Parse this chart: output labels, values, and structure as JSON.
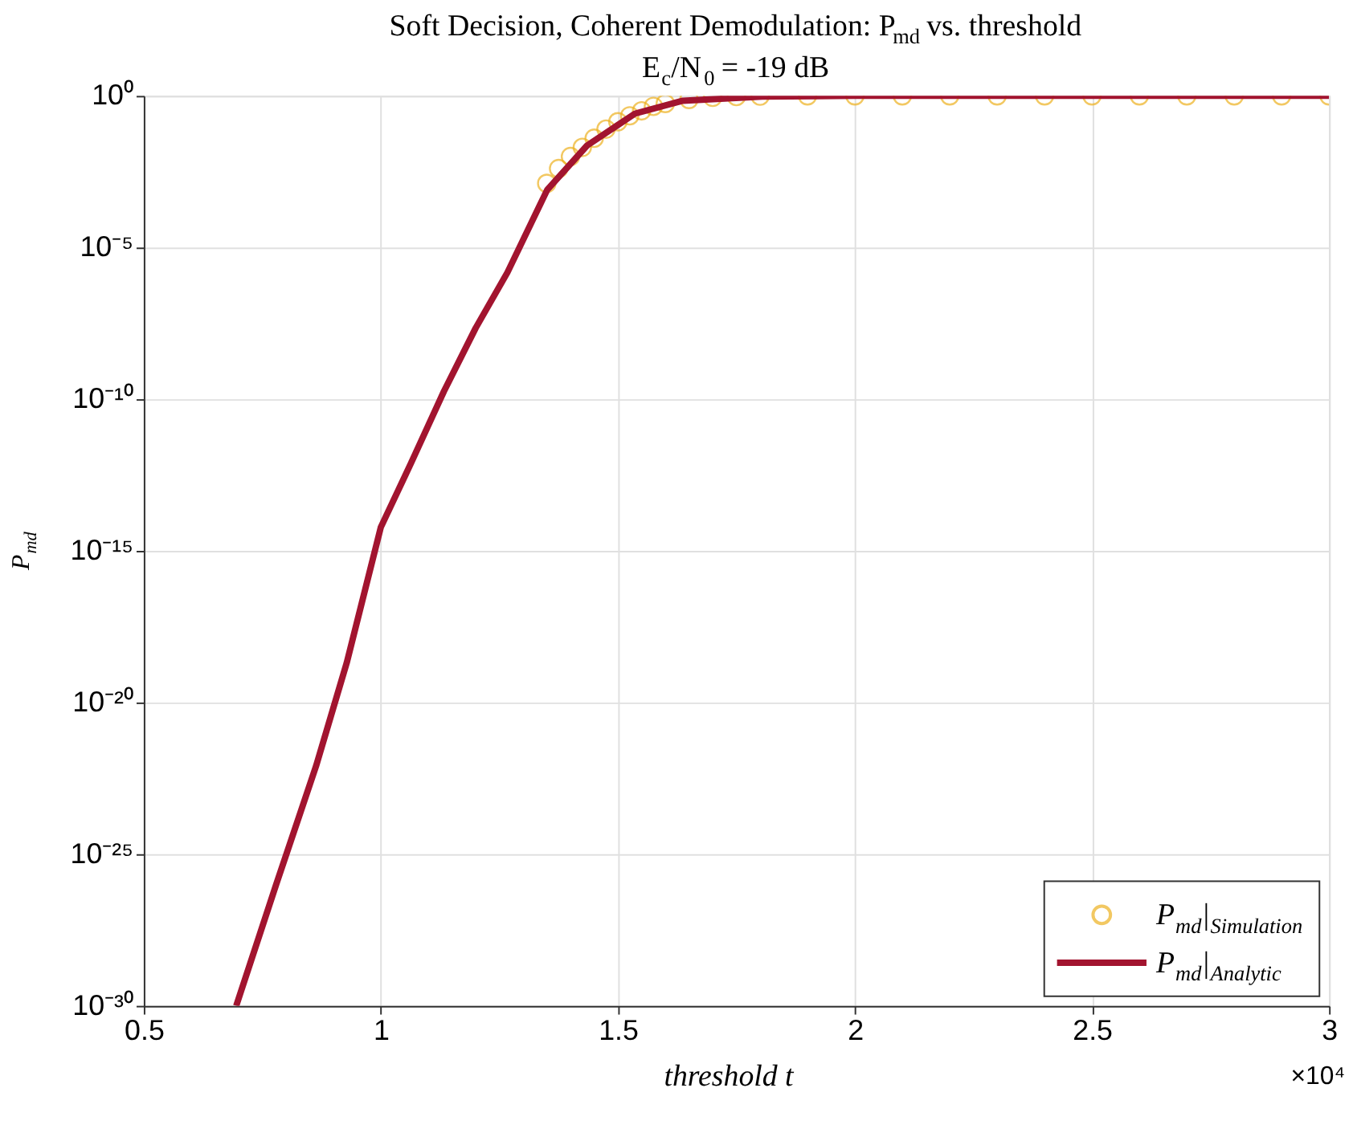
{
  "chart_data": {
    "type": "line",
    "title": "Soft Decision, Coherent Demodulation: P$_{md}$ vs. threshold",
    "subtitle": "E$_{c}$/N$_{0}$ = -19 dB",
    "xlabel": "threshold   t",
    "ylabel": "P$_{md}$",
    "annotations": [
      "×10⁴"
    ],
    "log": "y",
    "xlim": [
      0.5,
      3
    ],
    "xticks": [
      0.5,
      1,
      1.5,
      2,
      2.5,
      3
    ],
    "ylim": [
      1e-30,
      1
    ],
    "yticks": [
      {
        "value": 1e-30,
        "label": "10⁻³⁰"
      },
      {
        "value": 1e-25,
        "label": "10⁻²⁵"
      },
      {
        "value": 1e-20,
        "label": "10⁻²⁰"
      },
      {
        "value": 1e-15,
        "label": "10⁻¹⁵"
      },
      {
        "value": 1e-10,
        "label": "10⁻¹⁰"
      },
      {
        "value": 1e-05,
        "label": "10⁻⁵"
      },
      {
        "value": 1,
        "label": "10⁰"
      }
    ],
    "grid": true,
    "legend": "bottom right",
    "series": [
      {
        "name": "P$_{md}$|$_{Simulation}$",
        "type": "scatter",
        "marker": "circle",
        "color": "#edb120",
        "x": [
          1.35,
          1.375,
          1.4,
          1.425,
          1.45,
          1.475,
          1.5,
          1.525,
          1.55,
          1.575,
          1.6,
          1.65,
          1.7,
          1.75,
          1.8,
          1.9,
          2,
          2.1,
          2.2,
          2.3,
          2.4,
          2.5,
          2.6,
          2.7,
          2.8,
          2.9,
          3
        ],
        "values": [
          0.0013,
          0.004,
          0.01,
          0.02,
          0.04,
          0.08,
          0.14,
          0.22,
          0.32,
          0.45,
          0.56,
          0.76,
          0.89,
          0.95,
          0.98,
          1,
          1,
          1,
          1,
          1,
          1,
          1,
          1,
          1,
          1,
          1,
          1
        ]
      },
      {
        "name": "P$_{md}$|$_{Analytic}$",
        "line_style": "solid",
        "color": "#a2142f",
        "x": [
          0.695,
          0.7793,
          0.8634,
          0.928,
          1,
          1.064,
          1.133,
          1.2,
          1.267,
          1.351,
          1.435,
          1.536,
          1.637,
          1.805,
          2,
          2.5,
          3
        ],
        "values": [
          1e-30,
          1e-26,
          8e-23,
          2e-19,
          6e-15,
          8e-13,
          1.8e-10,
          2.2e-08,
          1.5e-06,
          0.0008,
          0.023,
          0.26,
          0.69,
          0.95,
          1,
          1,
          1
        ]
      }
    ]
  }
}
